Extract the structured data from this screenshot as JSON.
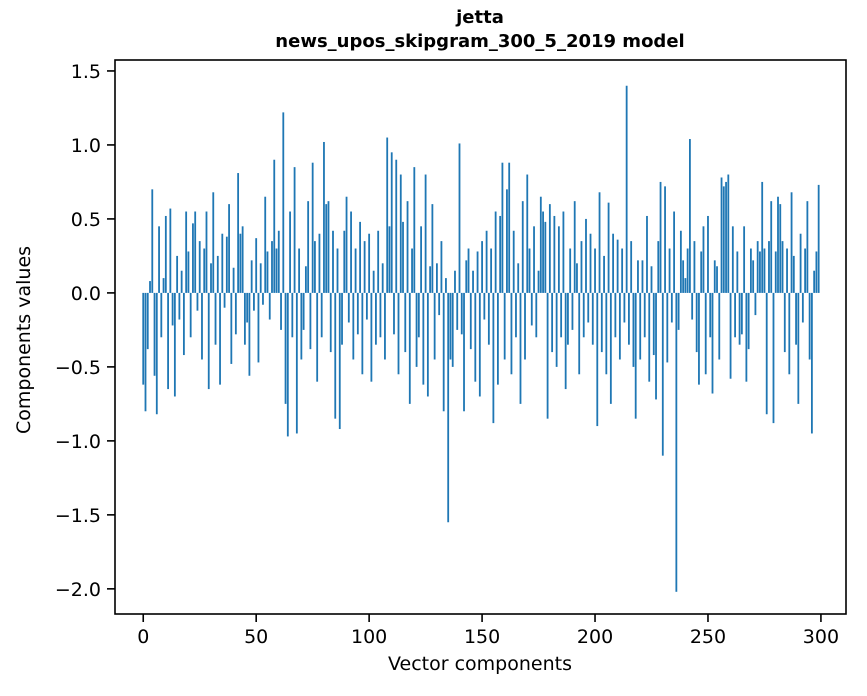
{
  "figure": {
    "title_line1": "jetta",
    "title_line2": "news_upos_skipgram_300_5_2019 model",
    "xlabel": "Vector components",
    "ylabel": "Components values"
  },
  "chart_data": {
    "type": "bar",
    "title": "jetta\nnews_upos_skipgram_300_5_2019 model",
    "xlabel": "Vector components",
    "ylabel": "Components values",
    "bar_color": "#1f77b4",
    "background": "#ffffff",
    "grid": false,
    "legend": null,
    "x_start": 0,
    "n_components": 300,
    "xticks": [
      0,
      50,
      100,
      150,
      200,
      250,
      300
    ],
    "yticks": [
      1.5,
      1.0,
      0.5,
      0.0,
      -0.5,
      -1.0,
      -1.5,
      -2.0
    ],
    "ytick_labels": [
      "1.5",
      "1.0",
      "0.5",
      "0.0",
      "−0.5",
      "−1.0",
      "−1.5",
      "−2.0"
    ],
    "xlim": [
      -12.5,
      311.1
    ],
    "ylim": [
      -2.17,
      1.574
    ],
    "values": [
      -0.62,
      -0.8,
      -0.38,
      0.08,
      0.7,
      -0.56,
      -0.82,
      0.45,
      -0.3,
      0.1,
      0.52,
      -0.65,
      0.57,
      -0.22,
      -0.7,
      0.25,
      -0.18,
      0.15,
      -0.42,
      0.55,
      0.28,
      -0.3,
      0.47,
      0.55,
      -0.12,
      0.35,
      -0.45,
      0.3,
      0.55,
      -0.65,
      0.2,
      0.68,
      -0.35,
      0.25,
      -0.62,
      0.4,
      -0.1,
      0.38,
      0.6,
      -0.48,
      0.17,
      -0.28,
      0.81,
      0.4,
      0.45,
      -0.35,
      -0.2,
      -0.56,
      0.22,
      -0.12,
      0.37,
      -0.47,
      0.2,
      -0.08,
      0.65,
      0.28,
      -0.18,
      0.35,
      0.9,
      0.3,
      0.42,
      -0.25,
      1.22,
      -0.75,
      -0.97,
      0.55,
      -0.3,
      0.85,
      -0.95,
      0.3,
      -0.45,
      -0.25,
      0.18,
      0.62,
      -0.38,
      0.88,
      0.35,
      -0.6,
      0.4,
      -0.3,
      1.02,
      0.6,
      0.62,
      -0.4,
      0.42,
      -0.85,
      0.3,
      -0.92,
      -0.35,
      0.42,
      0.65,
      -0.2,
      0.55,
      -0.45,
      0.3,
      -0.28,
      0.48,
      -0.55,
      0.35,
      -0.18,
      0.4,
      -0.6,
      0.15,
      -0.35,
      0.42,
      -0.3,
      0.2,
      -0.45,
      1.05,
      0.45,
      0.95,
      -0.28,
      0.9,
      -0.55,
      0.8,
      0.48,
      -0.4,
      0.62,
      -0.75,
      0.3,
      0.85,
      -0.5,
      -0.3,
      0.45,
      -0.62,
      0.8,
      -0.7,
      0.18,
      0.6,
      -0.45,
      0.2,
      -0.15,
      0.35,
      -0.8,
      0.1,
      -1.55,
      -0.45,
      -0.5,
      0.15,
      -0.25,
      1.01,
      -0.28,
      -0.8,
      0.22,
      0.3,
      -0.38,
      0.15,
      -0.6,
      0.28,
      -0.7,
      0.35,
      -0.18,
      0.42,
      -0.35,
      0.3,
      -0.88,
      0.55,
      -0.62,
      0.52,
      0.88,
      -0.45,
      0.7,
      0.88,
      -0.55,
      0.42,
      -0.3,
      0.2,
      -0.75,
      0.62,
      -0.45,
      0.8,
      0.3,
      -0.22,
      0.45,
      -0.3,
      0.15,
      0.65,
      0.55,
      0.48,
      -0.85,
      0.6,
      -0.4,
      0.52,
      -0.5,
      0.45,
      -0.3,
      0.55,
      -0.65,
      -0.35,
      0.3,
      -0.25,
      0.62,
      0.2,
      -0.55,
      0.35,
      -0.3,
      0.5,
      -0.2,
      0.4,
      -0.35,
      0.3,
      -0.9,
      0.68,
      -0.4,
      0.25,
      -0.55,
      0.61,
      -0.75,
      0.4,
      -0.3,
      0.36,
      -0.45,
      0.3,
      -0.2,
      1.4,
      -0.35,
      0.35,
      -0.5,
      -0.85,
      0.22,
      -0.45,
      0.22,
      -0.3,
      0.52,
      -0.6,
      0.18,
      -0.42,
      -0.72,
      0.35,
      0.75,
      -1.1,
      0.72,
      -0.47,
      0.3,
      -0.2,
      0.55,
      -2.02,
      -0.25,
      0.42,
      0.22,
      0.1,
      0.3,
      1.04,
      -0.18,
      0.35,
      -0.4,
      -0.62,
      0.28,
      0.45,
      -0.55,
      0.52,
      -0.3,
      -0.68,
      0.22,
      0.18,
      -0.45,
      0.78,
      0.72,
      0.75,
      0.8,
      -0.58,
      0.45,
      -0.3,
      0.28,
      -0.35,
      -0.28,
      0.45,
      -0.6,
      -0.38,
      0.3,
      0.22,
      -0.15,
      0.35,
      0.28,
      0.75,
      0.3,
      -0.82,
      0.35,
      0.62,
      -0.88,
      0.28,
      0.65,
      0.6,
      0.35,
      -0.4,
      0.3,
      -0.55,
      0.68,
      0.25,
      -0.35,
      -0.75,
      0.4,
      -0.2,
      0.3,
      0.62,
      -0.45,
      -0.95,
      0.15,
      0.28,
      0.73
    ]
  }
}
